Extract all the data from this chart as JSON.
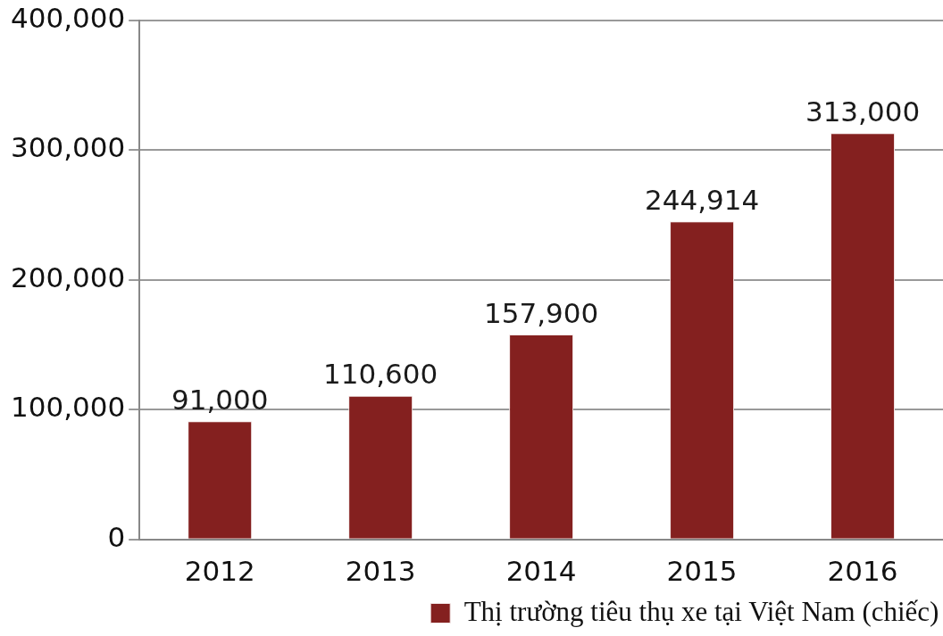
{
  "chart_data": {
    "type": "bar",
    "categories": [
      "2012",
      "2013",
      "2014",
      "2015",
      "2016"
    ],
    "series": [
      {
        "name": "Thị trường tiêu thụ xe tại Việt Nam (chiếc)",
        "color": "#84201f",
        "values": [
          91000,
          110600,
          157900,
          244914,
          313000
        ],
        "value_labels": [
          "91,000",
          "110,600",
          "157,900",
          "244,914",
          "313,000"
        ]
      }
    ],
    "ylim": [
      0,
      400000
    ],
    "yticks": [
      {
        "value": 0,
        "label": "0"
      },
      {
        "value": 100000,
        "label": "100,000"
      },
      {
        "value": 200000,
        "label": "200,000"
      },
      {
        "value": 300000,
        "label": "300,000"
      },
      {
        "value": 400000,
        "label": "400,000"
      }
    ],
    "grid": "y",
    "legend": "bottom right"
  }
}
